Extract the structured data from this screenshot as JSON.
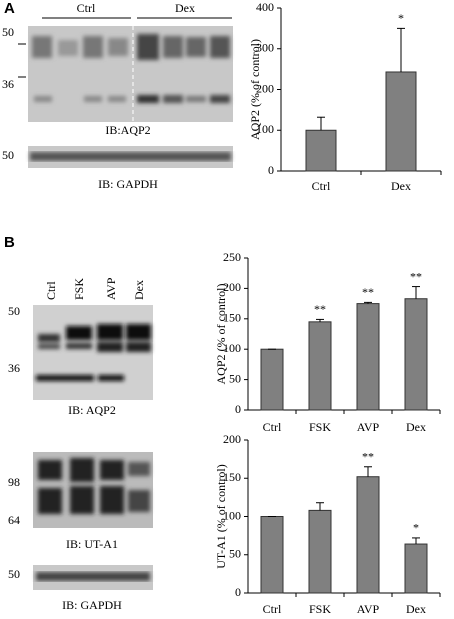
{
  "panel_labels": [
    "A",
    "B"
  ],
  "blot_a": {
    "groups": [
      "Ctrl",
      "Dex"
    ],
    "markers": [
      "50",
      "36"
    ],
    "label": "IB:AQP2",
    "gapdh_marker": "50",
    "gapdh_label": "IB: GAPDH"
  },
  "blot_b": {
    "lanes": [
      "Ctrl",
      "FSK",
      "AVP",
      "Dex"
    ],
    "aqp2_markers": [
      "50",
      "36"
    ],
    "aqp2_label": "IB: AQP2",
    "uta1_markers": [
      "98",
      "64"
    ],
    "uta1_label": "IB: UT-A1",
    "gapdh_marker": "50",
    "gapdh_label": "IB: GAPDH"
  },
  "chart_data": [
    {
      "type": "bar",
      "y_label": "AQP2 (% of control)",
      "categories": [
        "Ctrl",
        "Dex"
      ],
      "values": [
        100,
        243
      ],
      "errors": [
        32,
        107
      ],
      "annotations": [
        null,
        "*"
      ],
      "color": "#808080",
      "ylim": [
        0,
        400
      ],
      "yticks": [
        0,
        100,
        200,
        300,
        400
      ]
    },
    {
      "type": "bar",
      "y_label": "AQP2 (% of control)",
      "categories": [
        "Ctrl",
        "FSK",
        "AVP",
        "Dex"
      ],
      "values": [
        100,
        145,
        175,
        183
      ],
      "errors": [
        0,
        4,
        2,
        20
      ],
      "annotations": [
        null,
        "**",
        "**",
        "**"
      ],
      "color": "#808080",
      "ylim": [
        0,
        250
      ],
      "yticks": [
        0,
        50,
        100,
        150,
        200,
        250
      ]
    },
    {
      "type": "bar",
      "y_label": "UT-A1 (% of control)",
      "categories": [
        "Ctrl",
        "FSK",
        "AVP",
        "Dex"
      ],
      "values": [
        100,
        108,
        152,
        64
      ],
      "errors": [
        0,
        10,
        13,
        8
      ],
      "annotations": [
        null,
        null,
        "**",
        "*"
      ],
      "color": "#808080",
      "ylim": [
        0,
        200
      ],
      "yticks": [
        0,
        50,
        100,
        150,
        200
      ]
    }
  ]
}
